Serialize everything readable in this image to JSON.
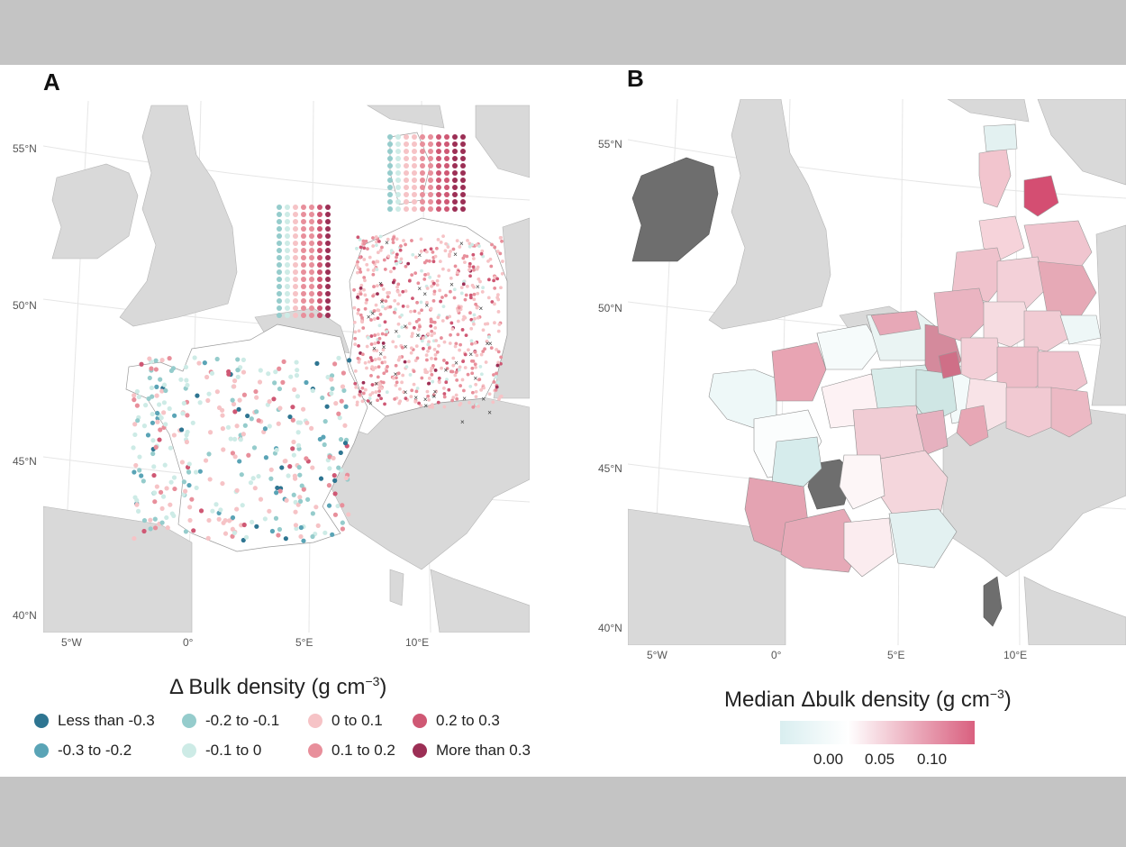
{
  "panelA": {
    "label": "A",
    "lat_labels": [
      "55°N",
      "50°N",
      "45°N",
      "40°N"
    ],
    "lon_labels": [
      "5°W",
      "0°",
      "5°E",
      "10°E"
    ],
    "legend_title": "Δ Bulk density (g cm",
    "legend_title_sup": "−3",
    "legend_title_end": ")",
    "legend": [
      {
        "label": "Less than -0.3",
        "color": "#2e7591"
      },
      {
        "label": "-0.3 to -0.2",
        "color": "#5aa4b6"
      },
      {
        "label": "-0.2 to -0.1",
        "color": "#95cccc"
      },
      {
        "label": "-0.1 to 0",
        "color": "#cdebe6"
      },
      {
        "label": "0 to 0.1",
        "color": "#f6c3c6"
      },
      {
        "label": "0.1 to 0.2",
        "color": "#e88f9b"
      },
      {
        "label": "0.2 to 0.3",
        "color": "#cf5874"
      },
      {
        "label": "More than 0.3",
        "color": "#9c2f55"
      }
    ]
  },
  "panelB": {
    "label": "B",
    "lat_labels": [
      "55°N",
      "50°N",
      "45°N",
      "40°N"
    ],
    "lon_labels": [
      "5°W",
      "0°",
      "5°E",
      "10°E"
    ],
    "legend_title": "Median Δbulk density (g cm",
    "legend_title_sup": "−3",
    "legend_title_end": ")",
    "colorbar_ticks": [
      "0.00",
      "0.05",
      "0.10"
    ],
    "colorbar_low": "#d9eef0",
    "colorbar_mid": "#ffffff",
    "colorbar_high": "#d9607f"
  },
  "colors": {
    "land": "#d9d9d9",
    "focus_land": "#ffffff",
    "missing": "#6e6e6e"
  }
}
